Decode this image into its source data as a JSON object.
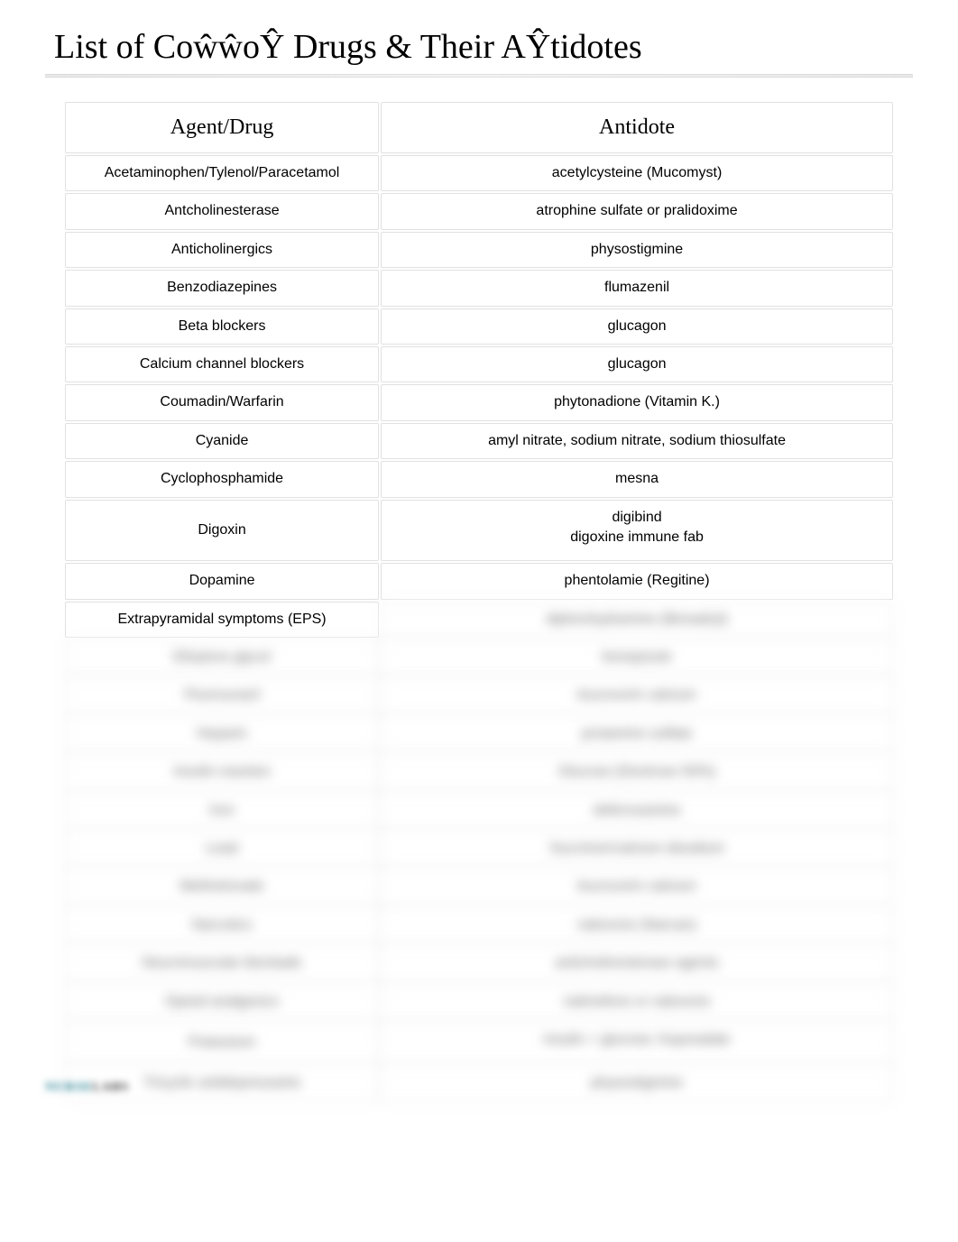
{
  "title": "List of CoŵŵoŶ Drugs & Their AŶtidotes",
  "table": {
    "columns": [
      "Agent/Drug",
      "Antidote"
    ],
    "rows": [
      {
        "agent": "Acetaminophen/Tylenol/Paracetamol",
        "antidote": "acetylcysteine (Mucomyst)",
        "blurred": false
      },
      {
        "agent": "Antcholinesterase",
        "antidote": "atrophine sulfate or pralidoxime",
        "blurred": false
      },
      {
        "agent": "Anticholinergics",
        "antidote": "physostigmine",
        "blurred": false
      },
      {
        "agent": "Benzodiazepines",
        "antidote": "flumazenil",
        "blurred": false
      },
      {
        "agent": "Beta blockers",
        "antidote": "glucagon",
        "blurred": false
      },
      {
        "agent": "Calcium channel blockers",
        "antidote": "glucagon",
        "blurred": false
      },
      {
        "agent": "Coumadin/Warfarin",
        "antidote": "phytonadione (Vitamin K.)",
        "blurred": false
      },
      {
        "agent": "Cyanide",
        "antidote": "amyl nitrate, sodium nitrate, sodium thiosulfate",
        "blurred": false
      },
      {
        "agent": "Cyclophosphamide",
        "antidote": "mesna",
        "blurred": false
      },
      {
        "agent": "Digoxin",
        "antidote": "digibind\ndigoxine immune fab",
        "blurred": false,
        "multiline": true
      },
      {
        "agent": "Dopamine",
        "antidote": "phentolamie (Regitine)",
        "blurred": false
      },
      {
        "agent": "Extrapyramidal symptoms (EPS)",
        "antidote": "diphenhydramine (Benadryl)",
        "blurred": false,
        "antidote_blurred": true
      },
      {
        "agent": "Ethylene glycol",
        "antidote": "fomepizole",
        "blurred": true
      },
      {
        "agent": "Fluorouracil",
        "antidote": "leucovorin calcium",
        "blurred": true
      },
      {
        "agent": "Heparin",
        "antidote": "protamine sulfate",
        "blurred": true
      },
      {
        "agent": "Insulin reaction",
        "antidote": "Glucose (Dextrose 50%)",
        "blurred": true
      },
      {
        "agent": "Iron",
        "antidote": "deferoxamine",
        "blurred": true
      },
      {
        "agent": "Lead",
        "antidote": "Succimer/calcium disodium",
        "blurred": true
      },
      {
        "agent": "Methotrexate",
        "antidote": "leucovorin calcium",
        "blurred": true
      },
      {
        "agent": "Narcotics",
        "antidote": "naloxone (Narcan)",
        "blurred": true
      },
      {
        "agent": "Neuromuscular blockade",
        "antidote": "anticholinesterase agents",
        "blurred": true
      },
      {
        "agent": "Opioid analgesics",
        "antidote": "nalmefene or naloxone",
        "blurred": true
      },
      {
        "agent": "Potassium",
        "antidote": "insulin + glucose; Kayexalate",
        "blurred": true,
        "multiline": true
      },
      {
        "agent": "Tricyclic antidepressants",
        "antidote": "physostigmine",
        "blurred": true
      }
    ],
    "header_fontsize": 24,
    "cell_fontsize": 16,
    "border_color": "#b4b4b4",
    "background_color": "#ffffff",
    "text_color": "#000000",
    "blurred_text_color": "#666666"
  },
  "footer": {
    "brand_part1": "NURSE",
    "brand_part2": "LABS"
  }
}
